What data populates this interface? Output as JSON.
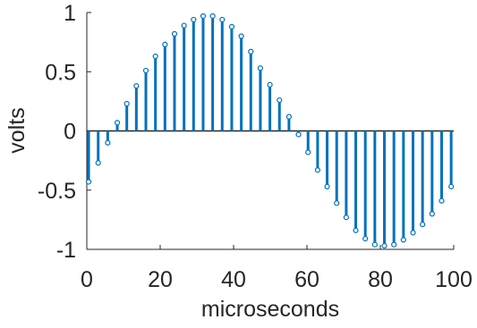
{
  "chart_data": {
    "type": "stem",
    "x_label": "microseconds",
    "y_label": "volts",
    "x": [
      0.5,
      3.1,
      5.7,
      8.3,
      10.9,
      13.5,
      16.1,
      18.7,
      21.3,
      23.9,
      26.5,
      29.1,
      31.7,
      34.3,
      36.9,
      39.5,
      42.1,
      44.7,
      47.3,
      49.9,
      52.5,
      55.1,
      57.7,
      60.3,
      62.9,
      65.5,
      68.1,
      70.7,
      73.3,
      75.9,
      78.5,
      81.1,
      83.7,
      86.3,
      88.9,
      91.5,
      94.1,
      96.7,
      99.3
    ],
    "series": [
      {
        "color": "#0072bd",
        "values": [
          -0.43,
          -0.27,
          -0.1,
          0.07,
          0.23,
          0.38,
          0.51,
          0.63,
          0.73,
          0.82,
          0.89,
          0.94,
          0.97,
          0.97,
          0.94,
          0.88,
          0.8,
          0.67,
          0.53,
          0.39,
          0.26,
          0.12,
          -0.03,
          -0.18,
          -0.33,
          -0.47,
          -0.61,
          -0.73,
          -0.84,
          -0.91,
          -0.96,
          -0.97,
          -0.96,
          -0.92,
          -0.86,
          -0.79,
          -0.7,
          -0.59,
          -0.47
        ]
      }
    ],
    "xlim": [
      0,
      100
    ],
    "xticks": [
      0,
      20,
      40,
      60,
      80,
      100
    ],
    "ylim": [
      -1,
      1
    ],
    "yticks": [
      -1,
      -0.5,
      0,
      0.5,
      1
    ]
  }
}
